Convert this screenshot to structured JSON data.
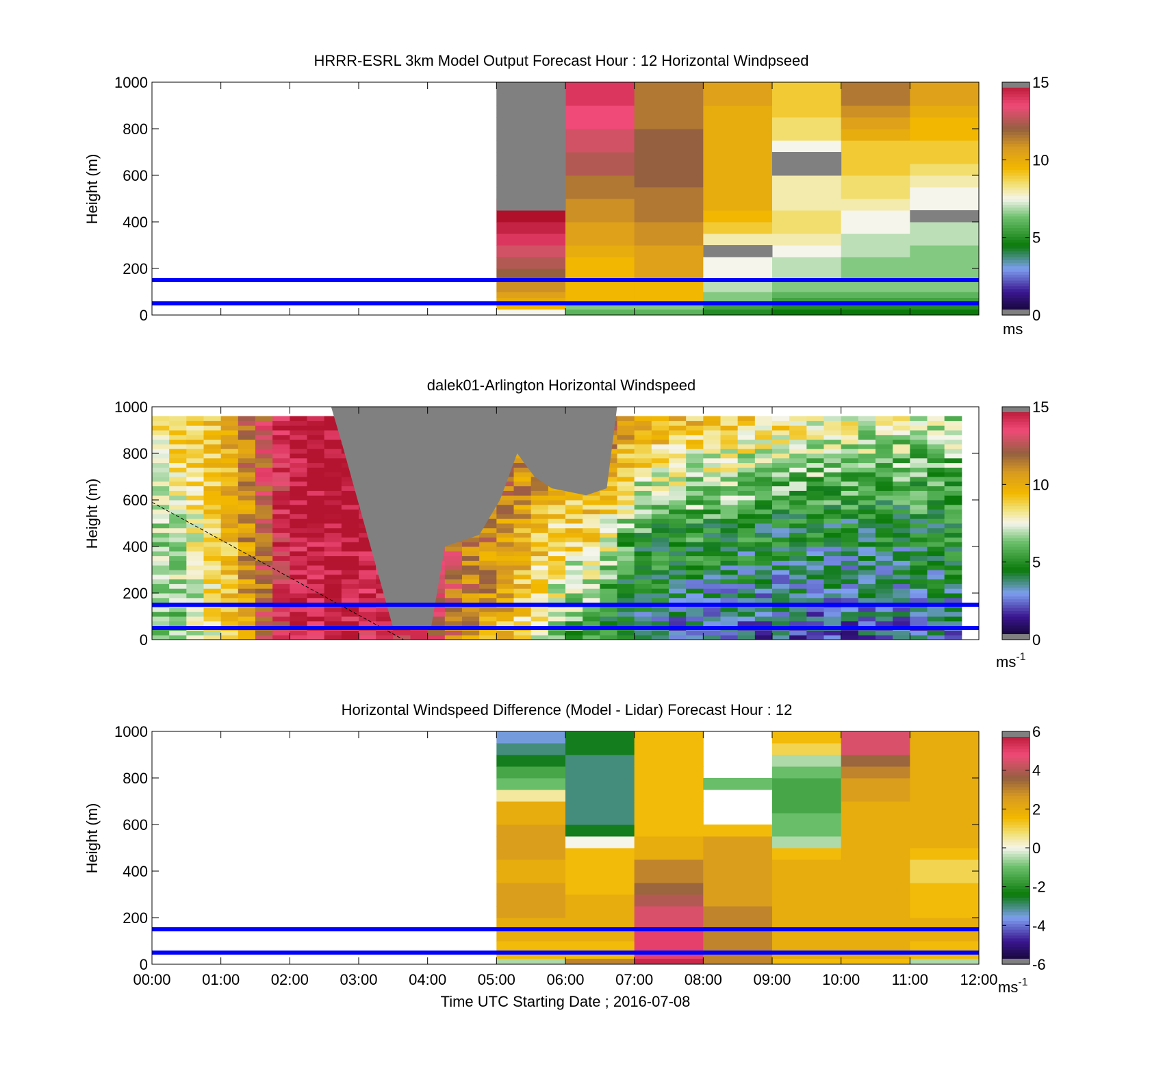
{
  "figure": {
    "xlabel": "Time UTC  Starting Date ; 2016-07-08",
    "hline_color": "#0000ff",
    "missing_color": "#808080",
    "colormap": [
      {
        "t": 0.0,
        "c": "#0d0421"
      },
      {
        "t": 0.1,
        "c": "#3a1590"
      },
      {
        "t": 0.2,
        "c": "#7e9ff0"
      },
      {
        "t": 0.3,
        "c": "#0a7a0a"
      },
      {
        "t": 0.42,
        "c": "#6cc06c"
      },
      {
        "t": 0.5,
        "c": "#f5f5ec"
      },
      {
        "t": 0.56,
        "c": "#f2e27a"
      },
      {
        "t": 0.63,
        "c": "#f2b800"
      },
      {
        "t": 0.72,
        "c": "#d89a20"
      },
      {
        "t": 0.8,
        "c": "#946040"
      },
      {
        "t": 0.9,
        "c": "#f04a78"
      },
      {
        "t": 1.0,
        "c": "#b0102a"
      }
    ]
  },
  "chart_data": [
    {
      "type": "heatmap",
      "title": "HRRR-ESRL 3km Model Output   Forecast Hour : 12 Horizontal Windpseed",
      "ylabel": "Height (m)",
      "colorbar_unit": "ms",
      "colorbar_sup": "",
      "clim": [
        0,
        15
      ],
      "colorbar_ticks": [
        "0",
        "5",
        "10",
        "15"
      ],
      "colorbar_tick_values": [
        0,
        5,
        10,
        15
      ],
      "xlim": [
        0,
        12
      ],
      "ylim": [
        0,
        1000
      ],
      "yticks": [
        0,
        200,
        400,
        600,
        800,
        1000
      ],
      "xticks": [
        "00:00",
        "01:00",
        "02:00",
        "03:00",
        "04:00",
        "05:00",
        "06:00",
        "07:00",
        "08:00",
        "09:00",
        "10:00",
        "11:00",
        "12:00"
      ],
      "show_xtick_labels": false,
      "hlines": [
        50,
        150
      ],
      "heights": [
        0,
        25,
        50,
        75,
        100,
        150,
        200,
        250,
        300,
        350,
        400,
        450,
        500,
        550,
        600,
        650,
        700,
        750,
        800,
        850,
        900,
        950,
        1000
      ],
      "columns": [
        {
          "t0": 5,
          "t1": 6,
          "values": [
            7.5,
            9.5,
            10,
            10.5,
            11,
            12,
            12.5,
            13,
            14,
            14.5,
            15,
            15,
            16,
            16,
            16,
            16,
            16,
            16,
            16,
            16,
            16,
            16
          ]
        },
        {
          "t0": 6,
          "t1": 7,
          "values": [
            6,
            6.5,
            9.5,
            9.5,
            9.5,
            9.5,
            9.5,
            10,
            10.5,
            10.5,
            11,
            11,
            11.5,
            11.5,
            12.5,
            12.5,
            13,
            13,
            13.5,
            13.5,
            14,
            14
          ]
        },
        {
          "t0": 7,
          "t1": 8,
          "values": [
            6,
            6.5,
            9.5,
            9.5,
            9.5,
            10.5,
            10.5,
            10.5,
            11,
            11,
            11.5,
            11.5,
            11.5,
            12,
            12,
            12,
            12,
            12,
            11.5,
            11.5,
            11.5,
            11.5
          ]
        },
        {
          "t0": 8,
          "t1": 9,
          "values": [
            5,
            5.5,
            6.5,
            6.5,
            7,
            7.5,
            7.5,
            7.5,
            8,
            9,
            9.5,
            10,
            10,
            10,
            10,
            10,
            10,
            10,
            10,
            10,
            10.5,
            10.5
          ]
        },
        {
          "t0": 9,
          "t1": 10,
          "values": [
            4.5,
            5,
            5.5,
            6,
            6.5,
            7,
            7,
            7.5,
            8,
            8.5,
            8.5,
            8,
            8,
            8,
            8,
            7.5,
            7.5,
            8.5,
            8.5,
            9,
            9,
            9
          ]
        },
        {
          "t0": 10,
          "t1": 11,
          "values": [
            4.5,
            5,
            5.5,
            6,
            6.5,
            6.5,
            6.5,
            7,
            7,
            7.5,
            7.5,
            8,
            8.5,
            8.5,
            9,
            9,
            9,
            10,
            10.5,
            11,
            11.5,
            11.5
          ]
        },
        {
          "t0": 11,
          "t1": 12,
          "values": [
            4.5,
            5,
            5.5,
            6,
            6.5,
            6.5,
            6.5,
            6.5,
            7,
            7,
            7.5,
            7.5,
            7.5,
            8,
            8.5,
            9,
            9,
            9.5,
            9.5,
            10,
            10.5,
            10.5
          ]
        }
      ],
      "missing_blocks": [
        {
          "t0": 5,
          "t1": 6,
          "h0": 450,
          "h1": 1000
        },
        {
          "t0": 8,
          "t1": 9,
          "h0": 250,
          "h1": 300
        },
        {
          "t0": 9,
          "t1": 10,
          "h0": 600,
          "h1": 700
        },
        {
          "t0": 11,
          "t1": 12,
          "h0": 400,
          "h1": 450
        }
      ]
    },
    {
      "type": "heatmap",
      "title": "dalek01-Arlington  Horizontal Windspeed",
      "ylabel": "Height (m)",
      "colorbar_unit": "ms",
      "colorbar_sup": "-1",
      "clim": [
        0,
        15
      ],
      "colorbar_ticks": [
        "0",
        "5",
        "10",
        "15"
      ],
      "colorbar_tick_values": [
        0,
        5,
        10,
        15
      ],
      "xlim": [
        0,
        12
      ],
      "ylim": [
        0,
        1000
      ],
      "yticks": [
        0,
        200,
        400,
        600,
        800,
        1000
      ],
      "xticks": [
        "00:00",
        "01:00",
        "02:00",
        "03:00",
        "04:00",
        "05:00",
        "06:00",
        "07:00",
        "08:00",
        "09:00",
        "10:00",
        "11:00",
        "12:00"
      ],
      "show_xtick_labels": false,
      "hlines": [
        50,
        150
      ],
      "diagonal": {
        "x0": 0,
        "y0": 590,
        "x1": 3.65,
        "y1": 0
      },
      "data_xlim": [
        0,
        11.75
      ],
      "data_top": 950,
      "nbins": 47,
      "profile": [
        {
          "t": 0.0,
          "low": 6,
          "mid": 6.5,
          "top": 8.5,
          "jitter": 1.2
        },
        {
          "t": 0.5,
          "low": 6.5,
          "mid": 7.5,
          "top": 9,
          "jitter": 1.2
        },
        {
          "t": 1.0,
          "low": 8.5,
          "mid": 9,
          "top": 9.5,
          "jitter": 1.2
        },
        {
          "t": 1.5,
          "low": 11,
          "mid": 11.5,
          "top": 12,
          "jitter": 1.5
        },
        {
          "t": 2.0,
          "low": 14,
          "mid": 14.5,
          "top": 15,
          "jitter": 1.2
        },
        {
          "t": 2.5,
          "low": 14.5,
          "mid": 15,
          "top": 15,
          "jitter": 1.2
        },
        {
          "t": 3.0,
          "low": 14,
          "mid": 15,
          "top": 15,
          "jitter": 1.0
        },
        {
          "t": 4.0,
          "low": 13.5,
          "mid": 14,
          "top": 14.5,
          "jitter": 1.0
        },
        {
          "t": 4.5,
          "low": 11,
          "mid": 12,
          "top": 13,
          "jitter": 1.5
        },
        {
          "t": 5.0,
          "low": 10,
          "mid": 11,
          "top": 12,
          "jitter": 1.5
        },
        {
          "t": 5.5,
          "low": 8,
          "mid": 10,
          "top": 12,
          "jitter": 1.5
        },
        {
          "t": 6.0,
          "low": 6,
          "mid": 8.5,
          "top": 11.5,
          "jitter": 1.5
        },
        {
          "t": 6.5,
          "low": 4.5,
          "mid": 9,
          "top": 12,
          "jitter": 1.5
        },
        {
          "t": 7.0,
          "low": 3.5,
          "mid": 5.5,
          "top": 11,
          "jitter": 1.5
        },
        {
          "t": 7.5,
          "low": 3,
          "mid": 5.5,
          "top": 10,
          "jitter": 1.5
        },
        {
          "t": 8.5,
          "low": 2.5,
          "mid": 5,
          "top": 9,
          "jitter": 1.5
        },
        {
          "t": 9.5,
          "low": 2.5,
          "mid": 4.5,
          "top": 8.5,
          "jitter": 1.5
        },
        {
          "t": 10.5,
          "low": 2.5,
          "mid": 4.5,
          "top": 7.5,
          "jitter": 1.5
        },
        {
          "t": 11.75,
          "low": 3,
          "mid": 5,
          "top": 7,
          "jitter": 1.5
        }
      ],
      "missing_region": [
        {
          "t": 2.6,
          "h": 1000
        },
        {
          "t": 2.75,
          "h": 850
        },
        {
          "t": 3.5,
          "h": 50
        },
        {
          "t": 4.05,
          "h": 50
        },
        {
          "t": 4.25,
          "h": 400
        },
        {
          "t": 4.75,
          "h": 450
        },
        {
          "t": 5.05,
          "h": 600
        },
        {
          "t": 5.3,
          "h": 800
        },
        {
          "t": 5.55,
          "h": 700
        },
        {
          "t": 5.8,
          "h": 650
        },
        {
          "t": 6.3,
          "h": 620
        },
        {
          "t": 6.6,
          "h": 650
        },
        {
          "t": 6.75,
          "h": 1000
        }
      ]
    },
    {
      "type": "heatmap",
      "title": "Horizontal Windspeed Difference (Model - Lidar) Forecast Hour : 12",
      "ylabel": "Height (m)",
      "colorbar_unit": "ms",
      "colorbar_sup": "-1",
      "clim": [
        -6,
        6
      ],
      "colorbar_ticks": [
        "-6",
        "-4",
        "-2",
        "0",
        "2",
        "4",
        "6"
      ],
      "colorbar_tick_values": [
        -6,
        -4,
        -2,
        0,
        2,
        4,
        6
      ],
      "xlim": [
        0,
        12
      ],
      "ylim": [
        0,
        1000
      ],
      "yticks": [
        0,
        200,
        400,
        600,
        800,
        1000
      ],
      "xticks": [
        "00:00",
        "01:00",
        "02:00",
        "03:00",
        "04:00",
        "05:00",
        "06:00",
        "07:00",
        "08:00",
        "09:00",
        "10:00",
        "11:00",
        "12:00"
      ],
      "show_xtick_labels": true,
      "hlines": [
        50,
        150
      ],
      "heights": [
        0,
        25,
        50,
        100,
        150,
        200,
        250,
        300,
        350,
        400,
        450,
        500,
        550,
        600,
        650,
        700,
        750,
        800,
        850,
        900,
        950,
        1000
      ],
      "columns": [
        {
          "t0": 5,
          "t1": 6,
          "values": [
            -0.5,
            1.5,
            1.5,
            2,
            2,
            2.5,
            2.5,
            2.5,
            2,
            2,
            2.5,
            2.5,
            2.5,
            2,
            2,
            0.5,
            -1,
            -1.5,
            -2.5,
            -3,
            -3.5
          ]
        },
        {
          "t0": 6,
          "t1": 7,
          "values": [
            3,
            1.5,
            1.5,
            2,
            2,
            2,
            2,
            1.5,
            1.5,
            1.5,
            1.5,
            0,
            -2.5,
            -3,
            -3,
            -3,
            -3,
            -3,
            -3,
            -2.5,
            -2.5
          ]
        },
        {
          "t0": 7,
          "t1": 8,
          "values": [
            5.5,
            5,
            5,
            5,
            4.5,
            4.5,
            4,
            3.5,
            3,
            3,
            2,
            2,
            1.5,
            1.5,
            1.5,
            1.5,
            1.5,
            1.5,
            1.5,
            1.5,
            1.5
          ]
        },
        {
          "t0": 8,
          "t1": 9,
          "values": [
            3,
            3,
            3,
            3,
            3,
            3,
            2.5,
            2.5,
            2.5,
            2.5,
            2.5,
            2.5,
            1.5,
            null,
            null,
            null,
            -1,
            null,
            null,
            null,
            null
          ]
        },
        {
          "t0": 9,
          "t1": 10,
          "values": [
            1.5,
            2,
            2,
            2,
            2,
            2,
            2,
            2,
            2,
            2,
            1.5,
            -0.5,
            -1,
            -1,
            -1.5,
            -1.5,
            -1.5,
            -1,
            -0.5,
            1,
            1.5
          ]
        },
        {
          "t0": 10,
          "t1": 11,
          "values": [
            1.5,
            2,
            2,
            2,
            2,
            2,
            2,
            2,
            2,
            2,
            2,
            2,
            2,
            2,
            2,
            2.5,
            2.5,
            3,
            3.5,
            4.5,
            4.5
          ]
        },
        {
          "t0": 11,
          "t1": 12,
          "values": [
            -0.5,
            1.5,
            1.5,
            2,
            2,
            1.5,
            1.5,
            1.5,
            1,
            1,
            1.5,
            2,
            2,
            2,
            2,
            2,
            2,
            2,
            2,
            2,
            2
          ]
        }
      ],
      "missing_blocks": []
    }
  ]
}
